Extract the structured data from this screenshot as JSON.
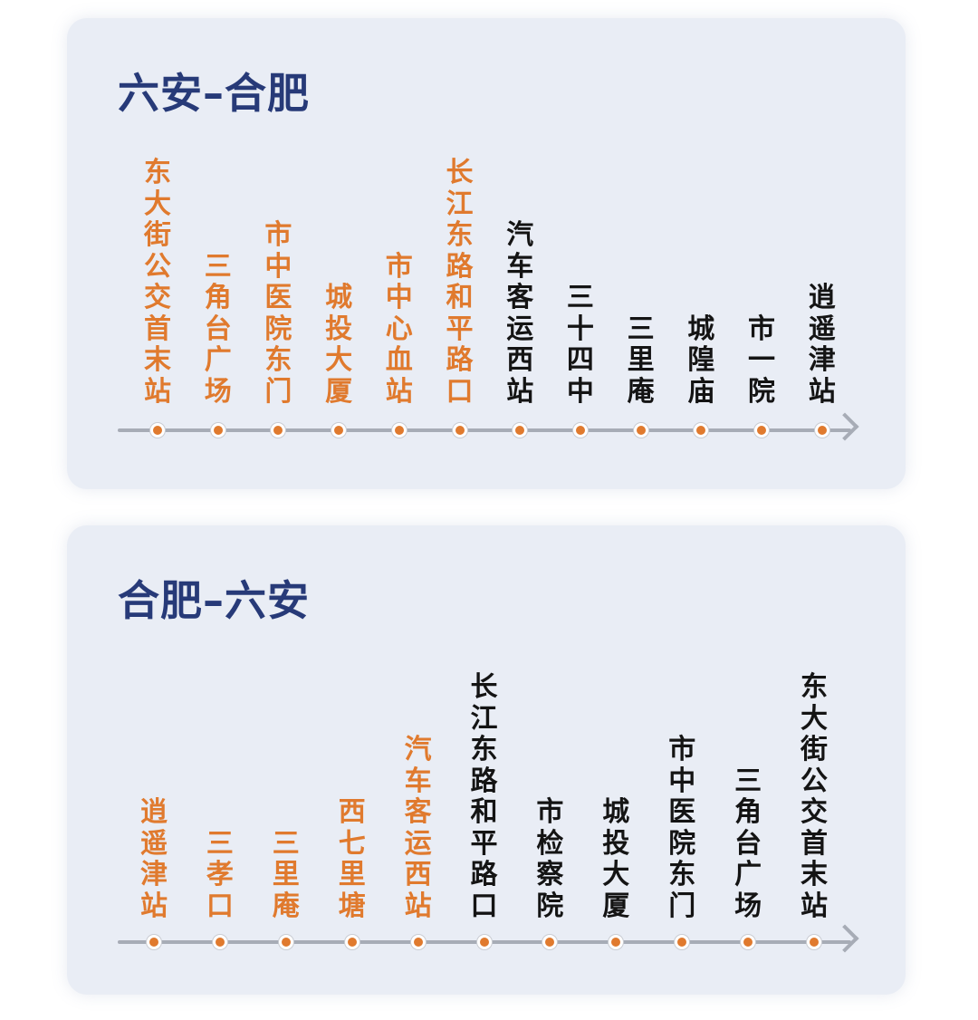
{
  "routes": [
    {
      "title": "六安–合肥",
      "stops": [
        {
          "name": "东大街公交首末站",
          "status": "passed"
        },
        {
          "name": "三角台广场",
          "status": "passed"
        },
        {
          "name": "市中医院东门",
          "status": "passed"
        },
        {
          "name": "城投大厦",
          "status": "passed"
        },
        {
          "name": "市中心血站",
          "status": "passed"
        },
        {
          "name": "长江东路和平路口",
          "status": "passed"
        },
        {
          "name": "汽车客运西站",
          "status": "upcoming"
        },
        {
          "name": "三十四中",
          "status": "upcoming"
        },
        {
          "name": "三里庵",
          "status": "upcoming"
        },
        {
          "name": "城隍庙",
          "status": "upcoming"
        },
        {
          "name": "市一院",
          "status": "upcoming"
        },
        {
          "name": "逍遥津站",
          "status": "upcoming"
        }
      ]
    },
    {
      "title": "合肥–六安",
      "stops": [
        {
          "name": "逍遥津站",
          "status": "passed"
        },
        {
          "name": "三孝口",
          "status": "passed"
        },
        {
          "name": "三里庵",
          "status": "passed"
        },
        {
          "name": "西七里塘",
          "status": "passed"
        },
        {
          "name": "汽车客运西站",
          "status": "passed"
        },
        {
          "name": "长江东路和平路口",
          "status": "upcoming"
        },
        {
          "name": "市检察院",
          "status": "upcoming"
        },
        {
          "name": "城投大厦",
          "status": "upcoming"
        },
        {
          "name": "市中医院东门",
          "status": "upcoming"
        },
        {
          "name": "三角台广场",
          "status": "upcoming"
        },
        {
          "name": "东大街公交首末站",
          "status": "upcoming"
        }
      ]
    }
  ],
  "colors": {
    "title": "#273a78",
    "passed": "#e07a2e",
    "upcoming": "#141414",
    "line": "#a7acb6",
    "card": "#e9edf5"
  }
}
